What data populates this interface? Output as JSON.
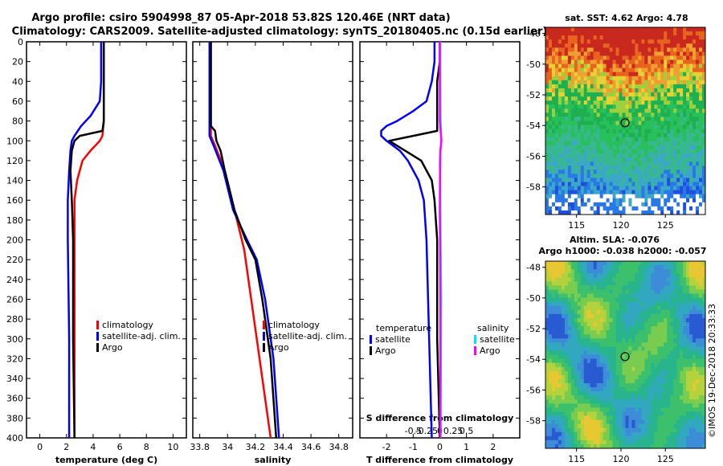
{
  "header": {
    "line1": "Argo profile: csiro 5904998_87 05-Apr-2018 53.82S 120.46E (NRT data)",
    "line2": "Climatology: CARS2009. Satellite-adjusted climatology: synTS_20180405.nc (0.15d earlier)"
  },
  "maps": {
    "sst_title": "sat. SST: 4.62 Argo: 4.78",
    "sla_title1": "Altim. SLA: -0.076",
    "sla_title2": "Argo h1000: -0.038 h2000: -0.057",
    "lat_ticks": [
      "-48",
      "-50",
      "-52",
      "-54",
      "-56",
      "-58"
    ],
    "lon_ticks": [
      "115",
      "120",
      "125"
    ],
    "credit": "©IMOS 19-Dec-2018 20:33:33",
    "argo_position": {
      "lon": 120.46,
      "lat": -53.82
    },
    "colors": {
      "marker": "#000000"
    }
  },
  "chart_data": [
    {
      "type": "line",
      "id": "temperature",
      "xlabel": "temperature (deg C)",
      "ylabel": "",
      "xlim": [
        -1,
        11
      ],
      "ylim": [
        400,
        0
      ],
      "xticks": [
        "0",
        "2",
        "4",
        "6",
        "8",
        "10"
      ],
      "yticks": [
        "0",
        "20",
        "40",
        "60",
        "80",
        "100",
        "120",
        "140",
        "160",
        "180",
        "200",
        "220",
        "240",
        "260",
        "280",
        "300",
        "320",
        "340",
        "360",
        "380",
        "400"
      ],
      "legend": {
        "position": "center-right",
        "items": [
          "climatology",
          "satellite-adj. clim.",
          "Argo"
        ]
      },
      "series": [
        {
          "name": "climatology",
          "color": "#ff0000",
          "depth": [
            0,
            40,
            80,
            95,
            100,
            110,
            120,
            140,
            160,
            200,
            300,
            400
          ],
          "values": [
            4.8,
            4.8,
            4.8,
            4.7,
            4.5,
            3.8,
            3.2,
            2.8,
            2.6,
            2.6,
            2.6,
            2.6
          ]
        },
        {
          "name": "satellite-adj. clim.",
          "color": "#0000ff",
          "depth": [
            0,
            40,
            60,
            75,
            85,
            95,
            100,
            110,
            130,
            160,
            200,
            300,
            400
          ],
          "values": [
            4.6,
            4.6,
            4.5,
            3.8,
            3.1,
            2.6,
            2.4,
            2.3,
            2.2,
            2.1,
            2.1,
            2.2,
            2.2
          ]
        },
        {
          "name": "Argo",
          "color": "#000000",
          "depth": [
            0,
            40,
            80,
            90,
            95,
            100,
            110,
            130,
            160,
            200,
            300,
            400
          ],
          "values": [
            4.8,
            4.8,
            4.8,
            4.7,
            3.0,
            2.6,
            2.4,
            2.3,
            2.4,
            2.5,
            2.5,
            2.6
          ]
        }
      ]
    },
    {
      "type": "line",
      "id": "salinity",
      "xlabel": "salinity",
      "ylabel": "",
      "xlim": [
        33.75,
        34.9
      ],
      "ylim": [
        400,
        0
      ],
      "xticks": [
        "33.8",
        "34",
        "34.2",
        "34.4",
        "34.6",
        "34.8"
      ],
      "legend": {
        "position": "center-right",
        "items": [
          "climatology",
          "satellite-adj. clim.",
          "Argo"
        ]
      },
      "series": [
        {
          "name": "climatology",
          "color": "#ff0000",
          "depth": [
            0,
            80,
            95,
            105,
            130,
            170,
            210,
            260,
            320,
            400
          ],
          "values": [
            33.88,
            33.88,
            33.88,
            33.91,
            33.98,
            34.05,
            34.12,
            34.17,
            34.23,
            34.31
          ]
        },
        {
          "name": "satellite-adj. clim.",
          "color": "#0000ff",
          "depth": [
            0,
            80,
            95,
            105,
            130,
            170,
            200,
            220,
            260,
            320,
            400
          ],
          "values": [
            33.87,
            33.87,
            33.87,
            33.9,
            33.97,
            34.04,
            34.14,
            34.21,
            34.27,
            34.33,
            34.37
          ]
        },
        {
          "name": "Argo",
          "color": "#000000",
          "depth": [
            0,
            85,
            90,
            100,
            110,
            130,
            170,
            200,
            220,
            260,
            320,
            400
          ],
          "values": [
            33.88,
            33.88,
            33.91,
            33.92,
            33.95,
            33.98,
            34.05,
            34.13,
            34.2,
            34.25,
            34.31,
            34.35
          ]
        }
      ]
    },
    {
      "type": "line",
      "id": "difference",
      "xlabel": "T difference from climatology",
      "ylabel": "",
      "xlim": [
        -3,
        3
      ],
      "ylim": [
        400,
        0
      ],
      "xticks": [
        "-2",
        "-1",
        "0",
        "1",
        "2"
      ],
      "top_axis_label": "S difference from climatology",
      "top_xticks": [
        "-0.5",
        "-0.25",
        "0",
        "0.25",
        "0.5"
      ],
      "legend": {
        "temperature_title": "temperature",
        "salinity_title": "salinity",
        "items": [
          {
            "group": "temperature",
            "name": "satellite",
            "color": "#0000ff"
          },
          {
            "group": "temperature",
            "name": "Argo",
            "color": "#000000"
          },
          {
            "group": "salinity",
            "name": "satellite",
            "color": "#00e5ff"
          },
          {
            "group": "salinity",
            "name": "Argo",
            "color": "#ff00ff"
          }
        ]
      },
      "series": [
        {
          "name": "temperature satellite",
          "color": "#0000ff",
          "depth": [
            0,
            20,
            40,
            60,
            70,
            80,
            85,
            90,
            95,
            100,
            110,
            120,
            140,
            160,
            200,
            300,
            400
          ],
          "values": [
            -0.2,
            -0.2,
            -0.3,
            -0.5,
            -1.0,
            -1.6,
            -2.0,
            -2.2,
            -2.2,
            -2.0,
            -1.5,
            -1.2,
            -0.8,
            -0.6,
            -0.5,
            -0.4,
            -0.3
          ]
        },
        {
          "name": "temperature Argo",
          "color": "#000000",
          "depth": [
            0,
            20,
            40,
            60,
            80,
            90,
            100,
            120,
            140,
            160,
            200,
            300,
            400
          ],
          "values": [
            0.0,
            0.0,
            -0.1,
            -0.1,
            -0.1,
            -0.1,
            -1.9,
            -0.7,
            -0.3,
            -0.2,
            -0.1,
            -0.1,
            0.0
          ]
        },
        {
          "name": "salinity satellite",
          "color": "#00e5ff",
          "depth": [
            0,
            40,
            80,
            100,
            120,
            160,
            200,
            260,
            320,
            400
          ],
          "values": [
            0.02,
            0.02,
            0.03,
            0.05,
            0.0,
            0.02,
            0.03,
            0.05,
            0.04,
            0.03
          ]
        },
        {
          "name": "salinity Argo",
          "color": "#ff00ff",
          "depth": [
            0,
            40,
            80,
            90,
            100,
            110,
            130,
            170,
            200,
            260,
            320,
            400
          ],
          "values": [
            0.0,
            0.0,
            0.0,
            0.03,
            0.06,
            0.02,
            0.01,
            0.0,
            0.01,
            0.02,
            0.02,
            0.02
          ]
        }
      ]
    }
  ]
}
